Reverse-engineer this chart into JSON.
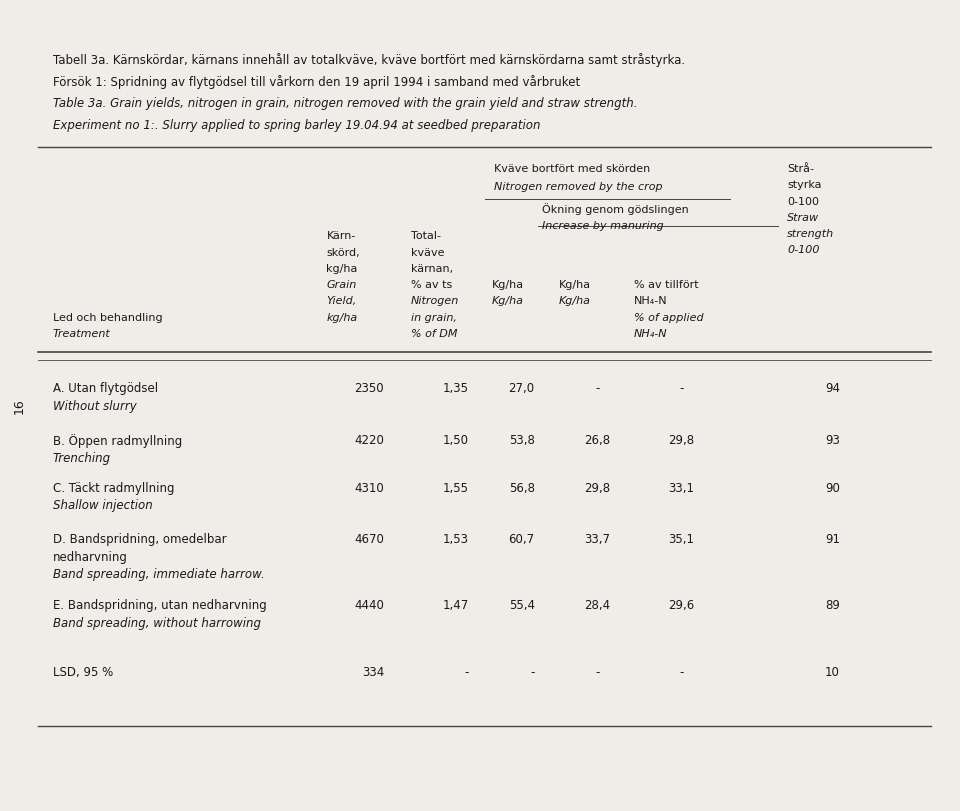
{
  "title_line1": "Tabell 3a. Kärnskördar, kärnans innehåll av totalkväve, kväve bortfört med kärnskördarna samt stråstyrka.",
  "title_line2": "Försök 1: Spridning av flytgödsel till vårkorn den 19 april 1994 i samband med vårbruket",
  "title_line3": "Table 3a. Grain yields, nitrogen in grain, nitrogen removed with the grain yield and straw strength.",
  "title_line4": "Experiment no 1:. Slurry applied to spring barley 19.04.94 at seedbed preparation",
  "page_number": "16",
  "col_headers": {
    "treatment_sv": "Led och behandling",
    "treatment_en": "Treatment",
    "grain_yield_sv1": "Kärn-",
    "grain_yield_sv2": "skörd,",
    "grain_yield_sv3": "kg/ha",
    "grain_yield_en1": "Grain",
    "grain_yield_en2": "Yield,",
    "grain_yield_en3": "kg/ha",
    "nitrogen_sv1": "Total-",
    "nitrogen_sv2": "kväve",
    "nitrogen_sv3": "kärnan,",
    "nitrogen_sv4": "% av ts",
    "nitrogen_en1": "Nitrogen",
    "nitrogen_en2": "in grain,",
    "nitrogen_en3": "% of DM",
    "n_removed_sv": "Kväve bortfört med skörden",
    "n_removed_en": "Nitrogen removed by the crop",
    "kg_ha_sv": "Kg/ha",
    "kg_ha_en": "Kg/ha",
    "increase_sv1": "Ökning genom gödslingen",
    "increase_en1": "Increase by manuring",
    "kg_ha2_sv": "Kg/ha",
    "kg_ha2_en": "Kg/ha",
    "pct_sv1": "% av tillfört",
    "pct_sv2": "NH₄-N",
    "pct_sv3": "% of applied",
    "pct_sv4": "NH₄-N",
    "straw_sv1": "Strå-",
    "straw_sv2": "styrka",
    "straw_sv3": "0-100",
    "straw_en1": "Straw",
    "straw_en2": "strength",
    "straw_en3": "0-100"
  },
  "rows": [
    {
      "label_sv": "A. Utan flytgödsel",
      "label_en": "Without slurry",
      "grain_yield": "2350",
      "nitrogen": "1,35",
      "kg_ha": "27,0",
      "increase_kg": "-",
      "increase_pct": "-",
      "straw": "94"
    },
    {
      "label_sv": "B. Öppen radmyllning",
      "label_en": "Trenching",
      "grain_yield": "4220",
      "nitrogen": "1,50",
      "kg_ha": "53,8",
      "increase_kg": "26,8",
      "increase_pct": "29,8",
      "straw": "93"
    },
    {
      "label_sv": "C. Täckt radmyllning",
      "label_en": "Shallow injection",
      "grain_yield": "4310",
      "nitrogen": "1,55",
      "kg_ha": "56,8",
      "increase_kg": "29,8",
      "increase_pct": "33,1",
      "straw": "90"
    },
    {
      "label_sv": "D. Bandspridning, omedelbar",
      "label_sv2": "nedharvning",
      "label_en": "Band spreading, immediate harrow.",
      "grain_yield": "4670",
      "nitrogen": "1,53",
      "kg_ha": "60,7",
      "increase_kg": "33,7",
      "increase_pct": "35,1",
      "straw": "91"
    },
    {
      "label_sv": "E. Bandspridning, utan nedharvning",
      "label_sv2": "",
      "label_en": "Band spreading, without harrowing",
      "grain_yield": "4440",
      "nitrogen": "1,47",
      "kg_ha": "55,4",
      "increase_kg": "28,4",
      "increase_pct": "29,6",
      "straw": "89"
    },
    {
      "label_sv": "LSD, 95 %",
      "label_sv2": "",
      "label_en": "",
      "grain_yield": "334",
      "nitrogen": "-",
      "kg_ha": "-",
      "increase_kg": "-",
      "increase_pct": "-",
      "straw": "10"
    }
  ],
  "bg_color": "#f0ede8",
  "text_color": "#1a1a1a",
  "line_color": "#444444"
}
